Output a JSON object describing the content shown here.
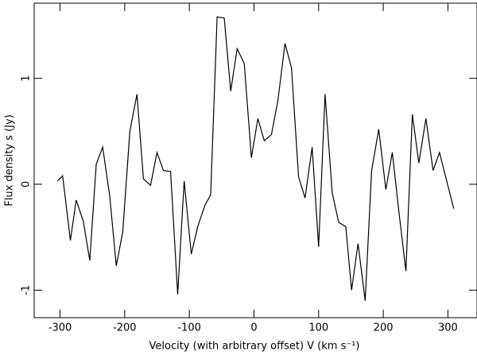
{
  "chart_data": {
    "type": "line",
    "x_label": "Velocity (with arbitrary offset) V (km s⁻¹)",
    "y_label": "Flux density s (Jy)",
    "x": [
      -304,
      -296,
      -284,
      -275,
      -264,
      -254,
      -244,
      -234,
      -223,
      -213,
      -203,
      -192,
      -181,
      -171,
      -160,
      -150,
      -140,
      -129,
      -118,
      -108,
      -97,
      -87,
      -76,
      -67,
      -57,
      -46,
      -36,
      -26,
      -15,
      -4,
      6,
      16,
      27,
      37,
      48,
      58,
      69,
      79,
      90,
      100,
      110,
      121,
      131,
      142,
      151,
      161,
      172,
      182,
      193,
      204,
      214,
      224,
      235,
      245,
      255,
      266,
      277,
      287,
      309
    ],
    "values": [
      0.03,
      0.08,
      -0.53,
      -0.15,
      -0.35,
      -0.72,
      0.19,
      0.35,
      -0.12,
      -0.77,
      -0.45,
      0.5,
      0.85,
      0.05,
      -0.01,
      0.3,
      0.13,
      0.12,
      -1.04,
      0.03,
      -0.66,
      -0.4,
      -0.2,
      -0.1,
      1.58,
      1.57,
      0.88,
      1.28,
      1.14,
      0.25,
      0.62,
      0.41,
      0.47,
      0.79,
      1.33,
      1.1,
      0.07,
      -0.13,
      0.35,
      -0.59,
      0.85,
      -0.08,
      -0.36,
      -0.4,
      -1.0,
      -0.56,
      -1.1,
      0.13,
      0.52,
      -0.05,
      0.3,
      -0.25,
      -0.82,
      0.66,
      0.2,
      0.62,
      0.13,
      0.3,
      -0.23
    ],
    "color": "#000000",
    "xlim": [
      -340,
      345
    ],
    "xticks": [
      -300,
      -200,
      -100,
      0,
      100,
      200,
      300
    ],
    "ylim": [
      -1.26,
      1.71
    ],
    "yticks": [
      -1,
      0,
      1
    ],
    "grid": false
  }
}
